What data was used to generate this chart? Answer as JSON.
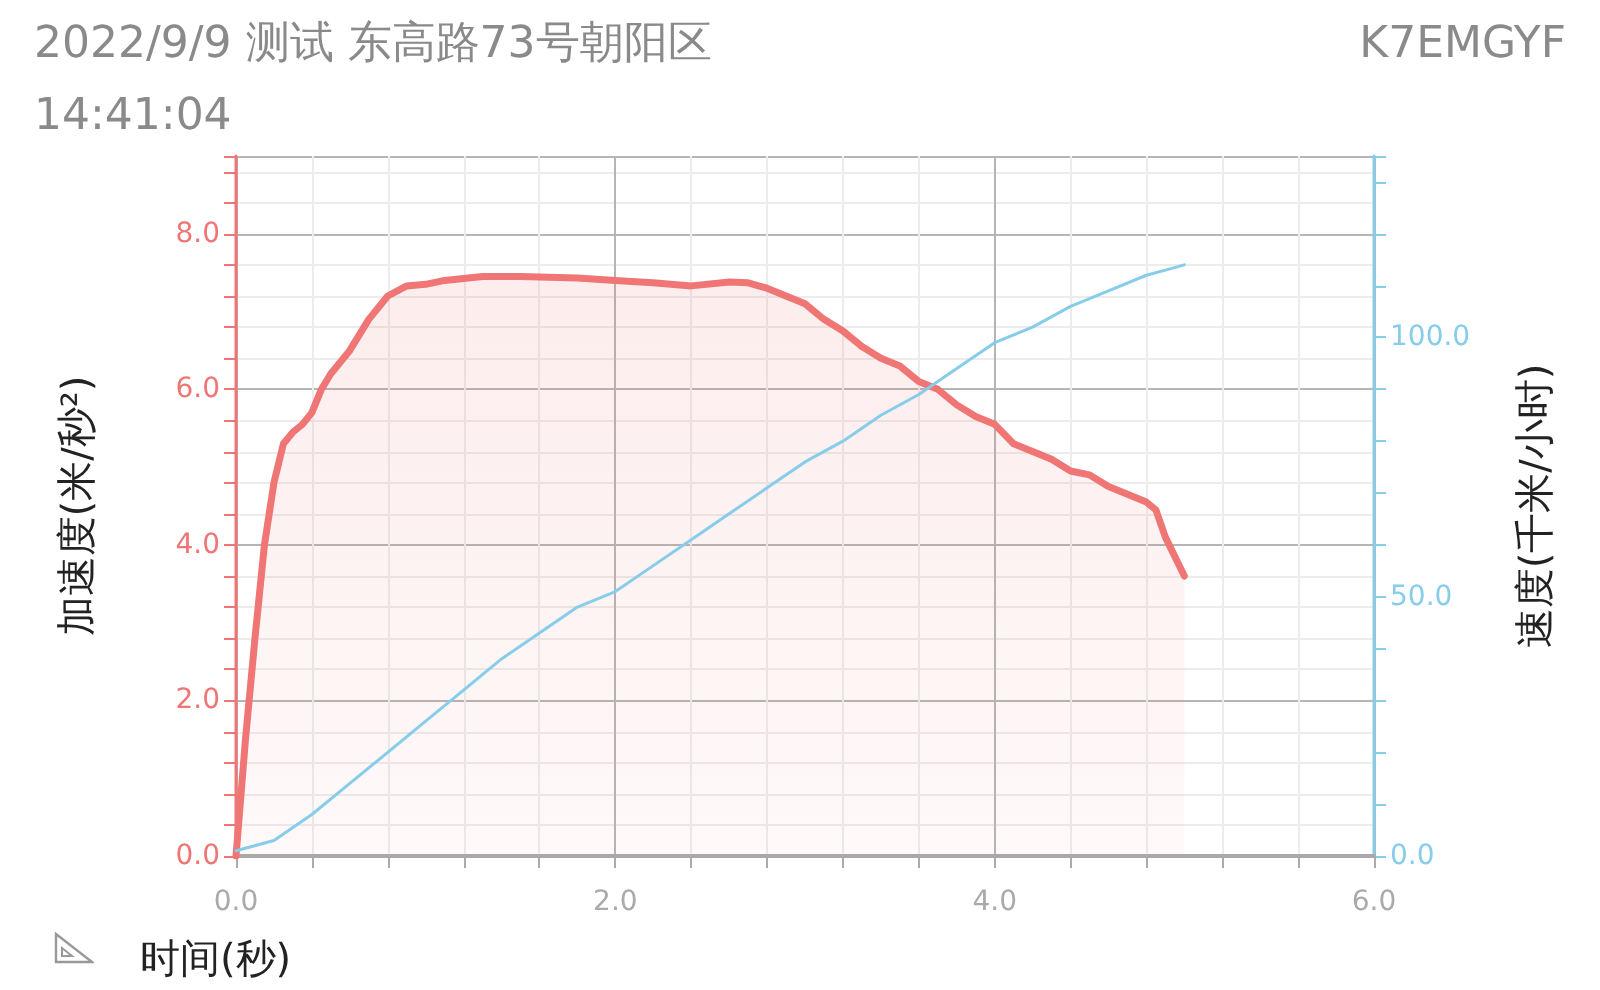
{
  "chart_data": {
    "type": "area",
    "title": "2022/9/9 测试 东高路73号朝阳区",
    "subtitle": "14:41:04",
    "annotations": [
      "K7EMGYF"
    ],
    "xlabel": "时间(秒)",
    "ylabel": "加速度(米/秒²)",
    "y2label": "速度(千米/小时)",
    "xlim": [
      0,
      6
    ],
    "ylim": [
      0,
      9
    ],
    "y2lim": [
      0,
      135
    ],
    "xticks": [
      {
        "value": 0,
        "label": "0.0"
      },
      {
        "value": 0.4,
        "label": null
      },
      {
        "value": 0.8,
        "label": null
      },
      {
        "value": 1.2,
        "label": null
      },
      {
        "value": 1.6,
        "label": null
      },
      {
        "value": 2,
        "label": "2.0"
      },
      {
        "value": 2.4,
        "label": null
      },
      {
        "value": 2.8,
        "label": null
      },
      {
        "value": 3.2,
        "label": null
      },
      {
        "value": 3.6,
        "label": null
      },
      {
        "value": 4,
        "label": "4.0"
      },
      {
        "value": 4.4,
        "label": null
      },
      {
        "value": 4.8,
        "label": null
      },
      {
        "value": 5.2,
        "label": null
      },
      {
        "value": 5.6,
        "label": null
      },
      {
        "value": 6,
        "label": "6.0"
      }
    ],
    "yticks": [
      {
        "value": 0,
        "label": "0.0"
      },
      {
        "value": 0.4,
        "label": null
      },
      {
        "value": 0.8,
        "label": null
      },
      {
        "value": 1.2,
        "label": null
      },
      {
        "value": 1.6,
        "label": null
      },
      {
        "value": 2,
        "label": "2.0"
      },
      {
        "value": 2.4,
        "label": null
      },
      {
        "value": 2.8,
        "label": null
      },
      {
        "value": 3.2,
        "label": null
      },
      {
        "value": 3.6,
        "label": null
      },
      {
        "value": 4,
        "label": "4.0"
      },
      {
        "value": 4.4,
        "label": null
      },
      {
        "value": 4.8,
        "label": null
      },
      {
        "value": 5.2,
        "label": null
      },
      {
        "value": 5.6,
        "label": null
      },
      {
        "value": 6,
        "label": "6.0"
      },
      {
        "value": 6.4,
        "label": null
      },
      {
        "value": 6.8,
        "label": null
      },
      {
        "value": 7.2,
        "label": null
      },
      {
        "value": 7.6,
        "label": null
      },
      {
        "value": 8,
        "label": "8.0"
      },
      {
        "value": 8.4,
        "label": null
      },
      {
        "value": 8.8,
        "label": null
      }
    ],
    "y2ticks": [
      {
        "value": 0,
        "label": "0.0"
      },
      {
        "value": 10,
        "label": null
      },
      {
        "value": 20,
        "label": null
      },
      {
        "value": 30,
        "label": null
      },
      {
        "value": 40,
        "label": null
      },
      {
        "value": 50,
        "label": "50.0"
      },
      {
        "value": 60,
        "label": null
      },
      {
        "value": 70,
        "label": null
      },
      {
        "value": 80,
        "label": null
      },
      {
        "value": 90,
        "label": null
      },
      {
        "value": 100,
        "label": "100.0"
      },
      {
        "value": 110,
        "label": null
      },
      {
        "value": 120,
        "label": null
      },
      {
        "value": 130,
        "label": null
      }
    ],
    "grid": true,
    "marker": "none",
    "line_style": "solid",
    "series": [
      {
        "color": "#f07575",
        "x": [
          0,
          0.05,
          0.1,
          0.15,
          0.2,
          0.25,
          0.3,
          0.35,
          0.4,
          0.45,
          0.5,
          0.6,
          0.7,
          0.8,
          0.9,
          1.0,
          1.1,
          1.3,
          1.5,
          1.8,
          2.0,
          2.2,
          2.4,
          2.6,
          2.7,
          2.8,
          3.0,
          3.1,
          3.2,
          3.3,
          3.4,
          3.5,
          3.6,
          3.7,
          3.8,
          3.9,
          4.0,
          4.1,
          4.2,
          4.3,
          4.4,
          4.5,
          4.6,
          4.7,
          4.8,
          4.85,
          4.9,
          5.0
        ],
        "values": [
          0,
          1.5,
          2.8,
          4.0,
          4.8,
          5.3,
          5.45,
          5.55,
          5.7,
          6.0,
          6.2,
          6.5,
          6.9,
          7.2,
          7.33,
          7.35,
          7.4,
          7.45,
          7.45,
          7.43,
          7.4,
          7.37,
          7.33,
          7.38,
          7.37,
          7.3,
          7.1,
          6.9,
          6.75,
          6.55,
          6.4,
          6.3,
          6.1,
          6.0,
          5.8,
          5.65,
          5.55,
          5.3,
          5.2,
          5.1,
          4.95,
          4.9,
          4.75,
          4.65,
          4.55,
          4.45,
          4.1,
          3.6
        ]
      },
      {
        "type": "line",
        "axis": "y2",
        "color": "#87cdea",
        "x": [
          0,
          0.2,
          0.4,
          0.6,
          0.8,
          1.0,
          1.2,
          1.4,
          1.6,
          1.8,
          2.0,
          2.2,
          2.4,
          2.6,
          2.8,
          3.0,
          3.2,
          3.4,
          3.6,
          3.8,
          4.0,
          4.2,
          4.4,
          4.6,
          4.8,
          4.9,
          5.0
        ],
        "values": [
          1,
          3,
          8,
          14,
          20,
          26,
          32,
          38,
          43,
          48,
          51,
          56,
          61,
          66,
          71,
          76,
          80,
          85,
          89,
          94,
          99,
          102,
          106,
          109,
          112,
          113,
          114
        ]
      }
    ]
  }
}
